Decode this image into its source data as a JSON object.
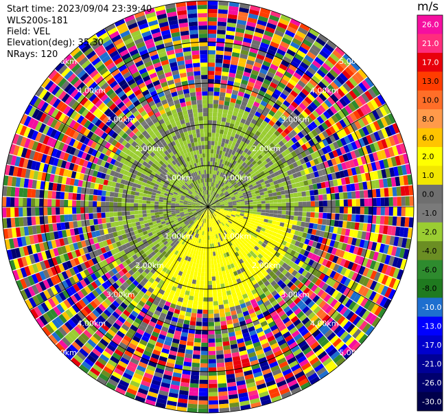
{
  "header": {
    "start_time": "Start time: 2023/09/04 23:39:40",
    "instrument": "WLS200s-181",
    "field": "Field: VEL",
    "elevation": "Elevation(deg): 35.30",
    "nrays": "NRays: 120"
  },
  "colorbar": {
    "units": "m/s",
    "ticks": [
      "26.0",
      "21.0",
      "17.0",
      "13.0",
      "10.0",
      "8.0",
      "6.0",
      "2.0",
      "1.0",
      "0.0",
      "-1.0",
      "-2.0",
      "-4.0",
      "-6.0",
      "-8.0",
      "-10.0",
      "-13.0",
      "-17.0",
      "-21.0",
      "-26.0",
      "-30.0"
    ],
    "colors": [
      "#f50fa0",
      "#ff2d7d",
      "#e8000b",
      "#ff3c00",
      "#ff6e28",
      "#ff9a4a",
      "#ffc400",
      "#ffff00",
      "#f2e600",
      "#6f6f6f",
      "#7a7a7a",
      "#9acd32",
      "#6b8e23",
      "#2e8b2e",
      "#1f7a1f",
      "#1e6fcf",
      "#0000ff",
      "#0000cd",
      "#000096",
      "#00006e",
      "#00004b"
    ]
  },
  "chart_data": {
    "type": "ppi",
    "field": "VEL",
    "units": "m/s",
    "elevation_deg": 35.3,
    "n_rays": 120,
    "range_ring_labels": [
      "1.00km",
      "2.00km",
      "3.00km",
      "4.00km",
      "5.00km"
    ],
    "color_scale": [
      -30.0,
      -26.0,
      -21.0,
      -17.0,
      -13.0,
      -10.0,
      -8.0,
      -6.0,
      -4.0,
      -2.0,
      -1.0,
      0.0,
      1.0,
      2.0,
      6.0,
      8.0,
      10.0,
      13.0,
      17.0,
      21.0,
      26.0
    ]
  }
}
